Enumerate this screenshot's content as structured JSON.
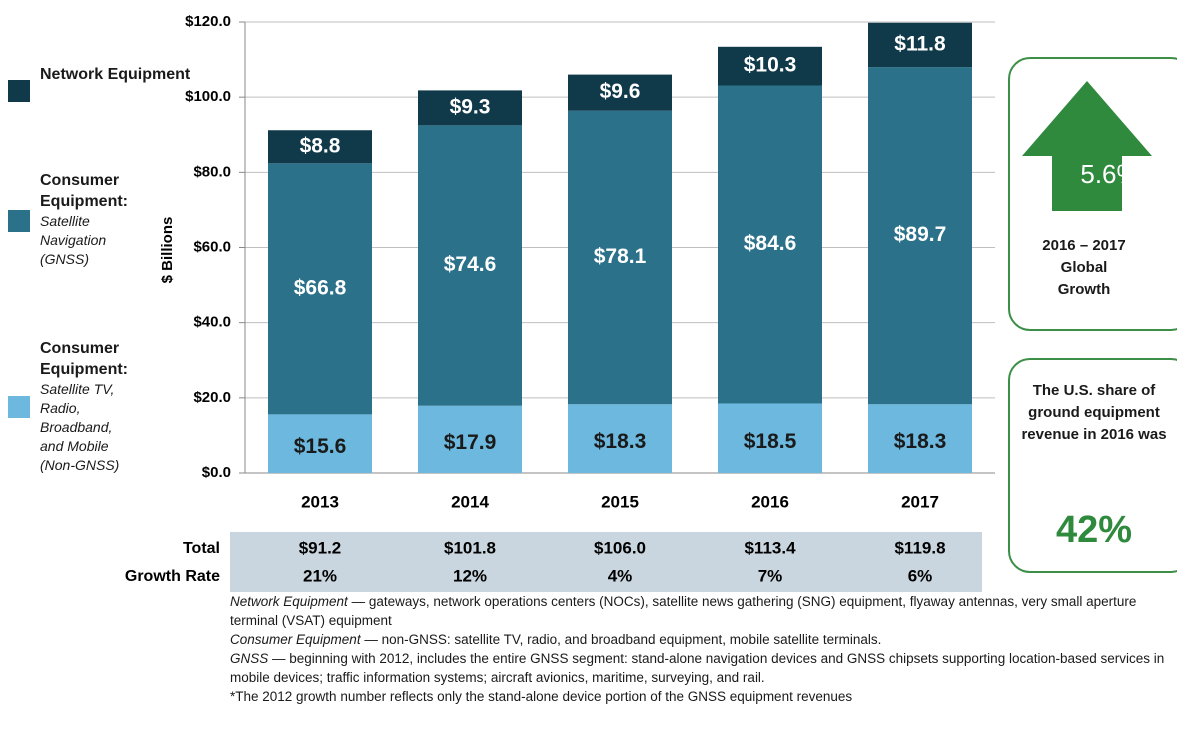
{
  "chart_data": {
    "type": "stacked-bar",
    "ylabel": "$ Billions",
    "categories": [
      "2013",
      "2014",
      "2015",
      "2016",
      "2017"
    ],
    "ylim": [
      0,
      120
    ],
    "yticks": [
      {
        "value": 0,
        "label": "$0.0"
      },
      {
        "value": 20,
        "label": "$20.0"
      },
      {
        "value": 40,
        "label": "$40.0"
      },
      {
        "value": 60,
        "label": "$60.0"
      },
      {
        "value": 80,
        "label": "$80.0"
      },
      {
        "value": 100,
        "label": "$100.0"
      },
      {
        "value": 120,
        "label": "$120.0"
      }
    ],
    "grid": true,
    "series": [
      {
        "name": "Consumer Equipment:",
        "description": "Satellite TV, Radio, Broadband, and Mobile (Non-GNSS)",
        "color": "#6cb8de",
        "label_color": "#1a1a1a",
        "values": [
          15.6,
          17.9,
          18.3,
          18.5,
          18.3
        ],
        "value_labels": [
          "$15.6",
          "$17.9",
          "$18.3",
          "$18.5",
          "$18.3"
        ]
      },
      {
        "name": "Consumer Equipment:",
        "description": "Satellite Navigation (GNSS)",
        "color": "#2b7189",
        "label_color": "#ffffff",
        "values": [
          66.8,
          74.6,
          78.1,
          84.6,
          89.7
        ],
        "value_labels": [
          "$66.8",
          "$74.6",
          "$78.1",
          "$84.6",
          "$89.7"
        ]
      },
      {
        "name": "Network Equipment",
        "color": "#10394a",
        "label_color": "#ffffff",
        "values": [
          8.8,
          9.3,
          9.6,
          10.3,
          11.8
        ],
        "value_labels": [
          "$8.8",
          "$9.3",
          "$9.6",
          "$10.3",
          "$11.8"
        ]
      }
    ],
    "totals": {
      "label": "Total",
      "values": [
        91.2,
        101.8,
        106.0,
        113.4,
        119.8
      ],
      "value_labels": [
        "$91.2",
        "$101.8",
        "$106.0",
        "$113.4",
        "$119.8"
      ]
    },
    "growth": {
      "label": "Growth Rate",
      "values": [
        21,
        12,
        4,
        7,
        6
      ],
      "value_labels": [
        "21%",
        "12%",
        "4%",
        "7%",
        "6%"
      ]
    }
  },
  "growth_box": {
    "value": 5.6,
    "label": "5.6%",
    "text": "2016 – 2017 Global Growth"
  },
  "share_box": {
    "text": "The U.S. share of ground equipment revenue in 2016 was",
    "value": 42,
    "label": "42%"
  },
  "footnotes": [
    {
      "term": "Network Equipment",
      "text": " — gateways, network operations centers (NOCs), satellite news gathering (SNG) equipment, flyaway antennas, very small aperture terminal (VSAT) equipment"
    },
    {
      "term": "Consumer Equipment",
      "text": " — non-GNSS: satellite TV, radio, and broadband equipment, mobile satellite terminals."
    },
    {
      "term": "GNSS",
      "text": " — beginning  with 2012, includes the entire GNSS segment: stand-alone navigation devices and GNSS chipsets supporting location-based services in mobile devices; traffic information systems; aircraft avionics, maritime, surveying, and rail."
    },
    {
      "text": "*The 2012 growth number reflects only the stand-alone device portion of the GNSS equipment revenues"
    }
  ]
}
